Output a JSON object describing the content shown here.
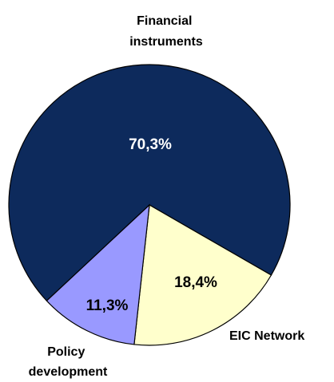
{
  "chart_data": {
    "type": "pie",
    "slices": [
      {
        "name": "Financial instruments",
        "label_lines": [
          "Financial",
          "instruments"
        ],
        "value": 70.3,
        "value_label": "70,3%",
        "color": "#0d2a5c",
        "value_color": "#ffffff"
      },
      {
        "name": "EIC Network",
        "label_lines": [
          "EIC Network"
        ],
        "value": 18.4,
        "value_label": "18,4%",
        "color": "#ffffcc",
        "value_color": "#000000"
      },
      {
        "name": "Policy development",
        "label_lines": [
          "Policy",
          "development"
        ],
        "value": 11.3,
        "value_label": "11,3%",
        "color": "#9999ff",
        "value_color": "#000000"
      }
    ],
    "start_angle_deg": 0,
    "direction": "clockwise",
    "legend": "none",
    "outline_color": "#000000"
  }
}
